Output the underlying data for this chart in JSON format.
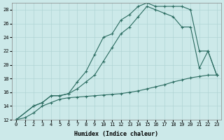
{
  "xlabel": "Humidex (Indice chaleur)",
  "ylabel": "",
  "bg_color": "#cce9e9",
  "line_color": "#2a6b60",
  "grid_color": "#b0d4d4",
  "xlim": [
    -0.5,
    23.5
  ],
  "ylim": [
    12,
    29
  ],
  "xticks": [
    0,
    1,
    2,
    3,
    4,
    5,
    6,
    7,
    8,
    9,
    10,
    11,
    12,
    13,
    14,
    15,
    16,
    17,
    18,
    19,
    20,
    21,
    22,
    23
  ],
  "yticks": [
    12,
    14,
    16,
    18,
    20,
    22,
    24,
    26,
    28
  ],
  "line1_x": [
    0,
    1,
    2,
    3,
    4,
    5,
    6,
    7,
    8,
    9,
    10,
    11,
    12,
    13,
    14,
    15,
    16,
    17,
    18,
    19,
    20,
    21,
    22,
    23
  ],
  "line1_y": [
    12,
    12.3,
    13.0,
    14.0,
    14.5,
    15.0,
    15.2,
    15.3,
    15.4,
    15.5,
    15.6,
    15.7,
    15.8,
    16.0,
    16.2,
    16.5,
    16.8,
    17.1,
    17.5,
    17.8,
    18.1,
    18.3,
    18.5,
    18.5
  ],
  "line2_x": [
    0,
    2,
    3,
    4,
    5,
    6,
    7,
    8,
    9,
    10,
    11,
    12,
    13,
    14,
    15,
    16,
    17,
    18,
    19,
    20,
    21,
    22,
    23
  ],
  "line2_y": [
    12,
    14.0,
    14.5,
    15.5,
    15.5,
    15.8,
    17.5,
    19.0,
    21.5,
    24.0,
    24.5,
    26.5,
    27.3,
    28.5,
    29.0,
    28.5,
    28.5,
    28.5,
    28.5,
    28.0,
    22.0,
    22.0,
    18.5
  ],
  "line3_x": [
    0,
    2,
    3,
    4,
    5,
    6,
    7,
    8,
    9,
    10,
    11,
    12,
    13,
    14,
    15,
    16,
    17,
    18,
    19,
    20,
    21,
    22,
    23
  ],
  "line3_y": [
    12,
    14.0,
    14.5,
    15.5,
    15.5,
    15.8,
    16.5,
    17.5,
    18.5,
    20.5,
    22.5,
    24.5,
    25.5,
    27.0,
    28.5,
    28.0,
    27.5,
    27.0,
    25.5,
    25.5,
    19.5,
    22.0,
    18.5
  ]
}
